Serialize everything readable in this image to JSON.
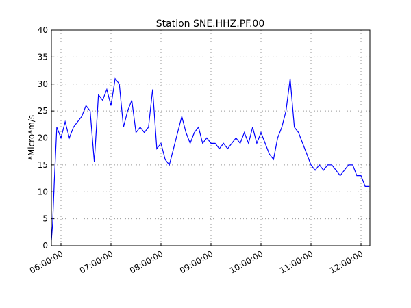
{
  "chart_data": {
    "type": "line",
    "title": "Station SNE.HHZ.PF.00",
    "y_label": "*Micro*m/s",
    "x": [
      "05:48:30",
      "05:50:00",
      "05:52:00",
      "05:55:00",
      "06:00:00",
      "06:05:00",
      "06:10:00",
      "06:15:00",
      "06:20:00",
      "06:25:00",
      "06:30:00",
      "06:35:00",
      "06:40:00",
      "06:45:00",
      "06:50:00",
      "06:55:00",
      "07:00:00",
      "07:05:00",
      "07:10:00",
      "07:15:00",
      "07:20:00",
      "07:25:00",
      "07:30:00",
      "07:35:00",
      "07:40:00",
      "07:45:00",
      "07:50:00",
      "07:55:00",
      "08:00:00",
      "08:05:00",
      "08:10:00",
      "08:15:00",
      "08:20:00",
      "08:25:00",
      "08:30:00",
      "08:35:00",
      "08:40:00",
      "08:45:00",
      "08:50:00",
      "08:55:00",
      "09:00:00",
      "09:05:00",
      "09:10:00",
      "09:15:00",
      "09:20:00",
      "09:25:00",
      "09:30:00",
      "09:35:00",
      "09:40:00",
      "09:45:00",
      "09:50:00",
      "09:55:00",
      "10:00:00",
      "10:05:00",
      "10:10:00",
      "10:15:00",
      "10:20:00",
      "10:25:00",
      "10:30:00",
      "10:35:00",
      "10:40:00",
      "10:45:00",
      "10:50:00",
      "10:55:00",
      "11:00:00",
      "11:05:00",
      "11:10:00",
      "11:15:00",
      "11:20:00",
      "11:25:00",
      "11:30:00",
      "11:35:00",
      "11:40:00",
      "11:45:00",
      "11:50:00",
      "11:55:00",
      "12:00:00",
      "12:05:00",
      "12:10:00"
    ],
    "series": [
      {
        "name": "SNE.HHZ.PF.00",
        "color": "#0000ff",
        "values": [
          1,
          4,
          12,
          22,
          20,
          23,
          20,
          22,
          23,
          24,
          26,
          25,
          15.5,
          28,
          27,
          29,
          26,
          31,
          30,
          22,
          25,
          27,
          21,
          22,
          21,
          22,
          29,
          18,
          19,
          16,
          15,
          18,
          21,
          24,
          21,
          19,
          21,
          22,
          19,
          20,
          19,
          19,
          18,
          19,
          18,
          19,
          20,
          19,
          21,
          19,
          22,
          19,
          21,
          19,
          17,
          16,
          20,
          22,
          25,
          31,
          22,
          21,
          19,
          17,
          15,
          14,
          15,
          14,
          15,
          15,
          14,
          13,
          14,
          15,
          15,
          13,
          13,
          11,
          11
        ]
      }
    ],
    "xlim": [
      "05:48:30",
      "12:10:40"
    ],
    "xticks": [
      "06:00:00",
      "07:00:00",
      "08:00:00",
      "09:00:00",
      "10:00:00",
      "11:00:00",
      "12:00:00"
    ],
    "ylim": [
      0,
      40
    ],
    "yticks": [
      0,
      5,
      10,
      15,
      20,
      25,
      30,
      35,
      40
    ],
    "grid": true
  }
}
